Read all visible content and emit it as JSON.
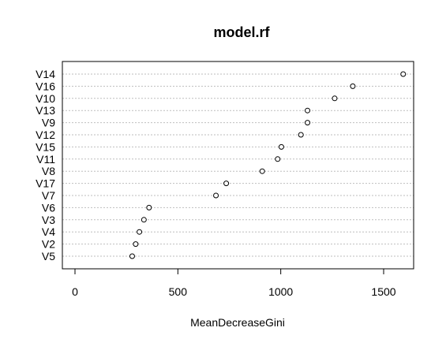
{
  "chart_data": {
    "type": "scatter",
    "title": "model.rf",
    "xlabel": "MeanDecreaseGini",
    "ylabel": "",
    "xlim": [
      0,
      1650
    ],
    "xticks": [
      0,
      500,
      1000,
      1500
    ],
    "grid": true,
    "categories": [
      "V14",
      "V16",
      "V10",
      "V13",
      "V9",
      "V12",
      "V15",
      "V11",
      "V8",
      "V17",
      "V7",
      "V6",
      "V3",
      "V4",
      "V2",
      "V5"
    ],
    "values": [
      1595,
      1350,
      1262,
      1130,
      1130,
      1098,
      1003,
      985,
      910,
      735,
      685,
      360,
      335,
      313,
      295,
      278
    ],
    "colors": {
      "point": "#000000",
      "grid": "#bebebe",
      "frame": "#000000"
    }
  }
}
